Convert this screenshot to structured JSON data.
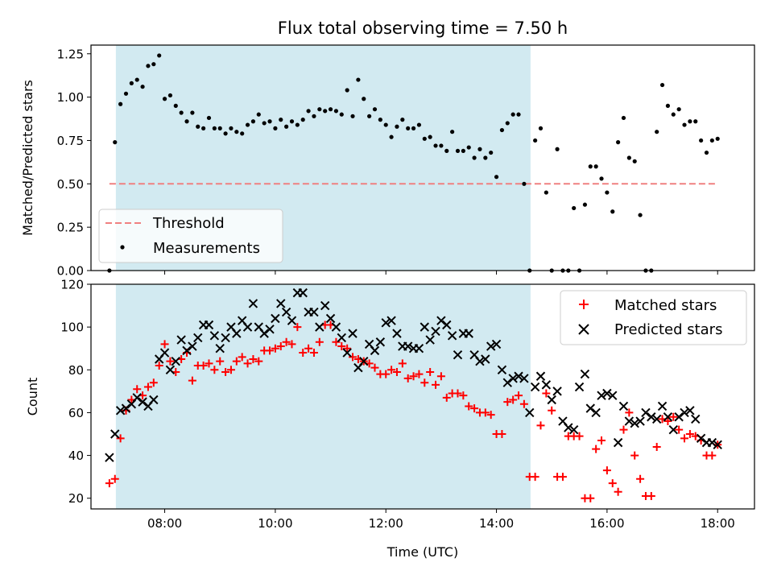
{
  "title": "Flux total observing time = 7.50 h",
  "chart_data": [
    {
      "type": "scatter",
      "panel": "top",
      "ylabel": "Matched/Predicted stars",
      "xlim": [
        "06:40",
        "18:40"
      ],
      "ylim": [
        0,
        1.3
      ],
      "x_ticks": [
        "08:00",
        "10:00",
        "12:00",
        "14:00",
        "16:00",
        "18:00"
      ],
      "y_ticks": [
        "0.00",
        "0.25",
        "0.50",
        "0.75",
        "1.00",
        "1.25"
      ],
      "legend_position": "lower-left",
      "legend": [
        "Threshold",
        "Measurements"
      ],
      "shaded_region": {
        "start": "07:07",
        "end": "14:37",
        "color": "#add8e6"
      },
      "threshold": {
        "value": 0.5,
        "color": "#f08080",
        "style": "dashed",
        "start": "07:00",
        "end": "18:00"
      },
      "series": [
        {
          "name": "Measurements",
          "marker": "dot",
          "color": "#000000",
          "x": [
            "07:00",
            "07:06",
            "07:12",
            "07:18",
            "07:24",
            "07:30",
            "07:36",
            "07:42",
            "07:48",
            "07:54",
            "08:00",
            "08:06",
            "08:12",
            "08:18",
            "08:24",
            "08:30",
            "08:36",
            "08:42",
            "08:48",
            "08:54",
            "09:00",
            "09:06",
            "09:12",
            "09:18",
            "09:24",
            "09:30",
            "09:36",
            "09:42",
            "09:48",
            "09:54",
            "10:00",
            "10:06",
            "10:12",
            "10:18",
            "10:24",
            "10:30",
            "10:36",
            "10:42",
            "10:48",
            "10:54",
            "11:00",
            "11:06",
            "11:12",
            "11:18",
            "11:24",
            "11:30",
            "11:36",
            "11:42",
            "11:48",
            "11:54",
            "12:00",
            "12:06",
            "12:12",
            "12:18",
            "12:24",
            "12:30",
            "12:36",
            "12:42",
            "12:48",
            "12:54",
            "13:00",
            "13:06",
            "13:12",
            "13:18",
            "13:24",
            "13:30",
            "13:36",
            "13:42",
            "13:48",
            "13:54",
            "14:00",
            "14:06",
            "14:12",
            "14:18",
            "14:24",
            "14:30",
            "14:36",
            "14:42",
            "14:48",
            "14:54",
            "15:00",
            "15:06",
            "15:12",
            "15:18",
            "15:24",
            "15:30",
            "15:36",
            "15:42",
            "15:48",
            "15:54",
            "16:00",
            "16:06",
            "16:12",
            "16:18",
            "16:24",
            "16:30",
            "16:36",
            "16:42",
            "16:48",
            "16:54",
            "17:00",
            "17:06",
            "17:12",
            "17:18",
            "17:24",
            "17:30",
            "17:36",
            "17:42",
            "17:48",
            "17:54",
            "18:00"
          ],
          "y": [
            0.0,
            0.74,
            0.96,
            1.02,
            1.08,
            1.1,
            1.06,
            1.18,
            1.19,
            1.24,
            0.99,
            1.01,
            0.95,
            0.91,
            0.86,
            0.91,
            0.83,
            0.82,
            0.88,
            0.82,
            0.82,
            0.79,
            0.82,
            0.8,
            0.79,
            0.84,
            0.86,
            0.9,
            0.85,
            0.86,
            0.82,
            0.87,
            0.83,
            0.86,
            0.84,
            0.87,
            0.92,
            0.89,
            0.93,
            0.92,
            0.93,
            0.92,
            0.9,
            1.04,
            0.89,
            1.1,
            0.99,
            0.89,
            0.93,
            0.87,
            0.84,
            0.77,
            0.83,
            0.87,
            0.82,
            0.82,
            0.84,
            0.76,
            0.77,
            0.72,
            0.72,
            0.69,
            0.8,
            0.69,
            0.69,
            0.71,
            0.65,
            0.7,
            0.65,
            0.68,
            0.54,
            0.81,
            0.85,
            0.9,
            0.9,
            0.5,
            0.0,
            0.75,
            0.82,
            0.45,
            0.0,
            0.7,
            0.0,
            0.0,
            0.36,
            0.0,
            0.38,
            0.6,
            0.6,
            0.53,
            0.45,
            0.34,
            0.74,
            0.88,
            0.65,
            0.63,
            0.32,
            0.0,
            0.0,
            0.8,
            1.07,
            0.95,
            0.9,
            0.93,
            0.84,
            0.86,
            0.86,
            0.75,
            0.68,
            0.75,
            0.76
          ]
        }
      ]
    },
    {
      "type": "scatter",
      "panel": "bottom",
      "xlabel": "Time (UTC)",
      "ylabel": "Count",
      "xlim": [
        "06:40",
        "18:40"
      ],
      "ylim": [
        15,
        120
      ],
      "x_ticks": [
        "08:00",
        "10:00",
        "12:00",
        "14:00",
        "16:00",
        "18:00"
      ],
      "y_ticks": [
        "20",
        "40",
        "60",
        "80",
        "100",
        "120"
      ],
      "legend_position": "upper-right",
      "legend": [
        "Matched stars",
        "Predicted stars"
      ],
      "shaded_region": {
        "start": "07:07",
        "end": "14:37",
        "color": "#add8e6"
      },
      "series": [
        {
          "name": "Matched stars",
          "marker": "plus",
          "color": "#ff0000",
          "x": [
            "07:00",
            "07:06",
            "07:12",
            "07:18",
            "07:24",
            "07:30",
            "07:36",
            "07:42",
            "07:48",
            "07:54",
            "08:00",
            "08:06",
            "08:12",
            "08:18",
            "08:24",
            "08:30",
            "08:36",
            "08:42",
            "08:48",
            "08:54",
            "09:00",
            "09:06",
            "09:12",
            "09:18",
            "09:24",
            "09:30",
            "09:36",
            "09:42",
            "09:48",
            "09:54",
            "10:00",
            "10:06",
            "10:12",
            "10:18",
            "10:24",
            "10:30",
            "10:36",
            "10:42",
            "10:48",
            "10:54",
            "11:00",
            "11:06",
            "11:12",
            "11:18",
            "11:24",
            "11:30",
            "11:36",
            "11:42",
            "11:48",
            "11:54",
            "12:00",
            "12:06",
            "12:12",
            "12:18",
            "12:24",
            "12:30",
            "12:36",
            "12:42",
            "12:48",
            "12:54",
            "13:00",
            "13:06",
            "13:12",
            "13:18",
            "13:24",
            "13:30",
            "13:36",
            "13:42",
            "13:48",
            "13:54",
            "14:00",
            "14:06",
            "14:12",
            "14:18",
            "14:24",
            "14:30",
            "14:36",
            "14:42",
            "14:48",
            "14:54",
            "15:00",
            "15:06",
            "15:12",
            "15:18",
            "15:24",
            "15:30",
            "15:36",
            "15:42",
            "15:48",
            "15:54",
            "16:00",
            "16:06",
            "16:12",
            "16:18",
            "16:24",
            "16:30",
            "16:36",
            "16:42",
            "16:48",
            "16:54",
            "17:00",
            "17:06",
            "17:12",
            "17:18",
            "17:24",
            "17:30",
            "17:36",
            "17:42",
            "17:48",
            "17:54",
            "18:00"
          ],
          "y": [
            27,
            29,
            48,
            61,
            66,
            71,
            68,
            72,
            74,
            82,
            92,
            84,
            79,
            85,
            88,
            75,
            82,
            82,
            83,
            80,
            84,
            79,
            80,
            84,
            86,
            83,
            85,
            84,
            89,
            89,
            90,
            91,
            93,
            92,
            100,
            88,
            90,
            88,
            93,
            101,
            101,
            93,
            91,
            90,
            86,
            85,
            84,
            83,
            81,
            78,
            78,
            80,
            79,
            83,
            76,
            77,
            78,
            74,
            79,
            73,
            77,
            67,
            69,
            69,
            68,
            63,
            62,
            60,
            60,
            59,
            50,
            50,
            65,
            66,
            68,
            64,
            30,
            30,
            54,
            69,
            61,
            30,
            30,
            49,
            49,
            49,
            20,
            20,
            43,
            47,
            33,
            27,
            23,
            52,
            60,
            40,
            29,
            21,
            21,
            44,
            57,
            56,
            58,
            52,
            48,
            50,
            49,
            47,
            40,
            40,
            45
          ]
        },
        {
          "name": "Predicted stars",
          "marker": "x",
          "color": "#000000",
          "x": [
            "07:00",
            "07:06",
            "07:12",
            "07:18",
            "07:24",
            "07:30",
            "07:36",
            "07:42",
            "07:48",
            "07:54",
            "08:00",
            "08:06",
            "08:12",
            "08:18",
            "08:24",
            "08:30",
            "08:36",
            "08:42",
            "08:48",
            "08:54",
            "09:00",
            "09:06",
            "09:12",
            "09:18",
            "09:24",
            "09:30",
            "09:36",
            "09:42",
            "09:48",
            "09:54",
            "10:00",
            "10:06",
            "10:12",
            "10:18",
            "10:24",
            "10:30",
            "10:36",
            "10:42",
            "10:48",
            "10:54",
            "11:00",
            "11:06",
            "11:12",
            "11:18",
            "11:24",
            "11:30",
            "11:36",
            "11:42",
            "11:48",
            "11:54",
            "12:00",
            "12:06",
            "12:12",
            "12:18",
            "12:24",
            "12:30",
            "12:36",
            "12:42",
            "12:48",
            "12:54",
            "13:00",
            "13:06",
            "13:12",
            "13:18",
            "13:24",
            "13:30",
            "13:36",
            "13:42",
            "13:48",
            "13:54",
            "14:00",
            "14:06",
            "14:12",
            "14:18",
            "14:24",
            "14:30",
            "14:36",
            "14:42",
            "14:48",
            "14:54",
            "15:00",
            "15:06",
            "15:12",
            "15:18",
            "15:24",
            "15:30",
            "15:36",
            "15:42",
            "15:48",
            "15:54",
            "16:00",
            "16:06",
            "16:12",
            "16:18",
            "16:24",
            "16:30",
            "16:36",
            "16:42",
            "16:48",
            "16:54",
            "17:00",
            "17:06",
            "17:12",
            "17:18",
            "17:24",
            "17:30",
            "17:36",
            "17:42",
            "17:48",
            "17:54",
            "18:00"
          ],
          "y": [
            39,
            50,
            61,
            62,
            64,
            67,
            65,
            63,
            66,
            85,
            88,
            80,
            84,
            94,
            89,
            91,
            95,
            101,
            101,
            96,
            90,
            95,
            100,
            97,
            103,
            100,
            111,
            100,
            97,
            99,
            104,
            111,
            107,
            103,
            116,
            116,
            107,
            107,
            100,
            110,
            104,
            100,
            95,
            88,
            97,
            81,
            84,
            92,
            89,
            93,
            102,
            103,
            97,
            91,
            91,
            90,
            90,
            100,
            94,
            98,
            103,
            101,
            96,
            87,
            97,
            97,
            87,
            84,
            85,
            91,
            92,
            80,
            74,
            76,
            77,
            76,
            60,
            72,
            77,
            73,
            66,
            70,
            56,
            53,
            52,
            72,
            78,
            62,
            60,
            68,
            69,
            68,
            46,
            63,
            56,
            55,
            56,
            60,
            58,
            57,
            63,
            58,
            52,
            58,
            60,
            61,
            57,
            48,
            46,
            46,
            45
          ]
        }
      ]
    }
  ]
}
